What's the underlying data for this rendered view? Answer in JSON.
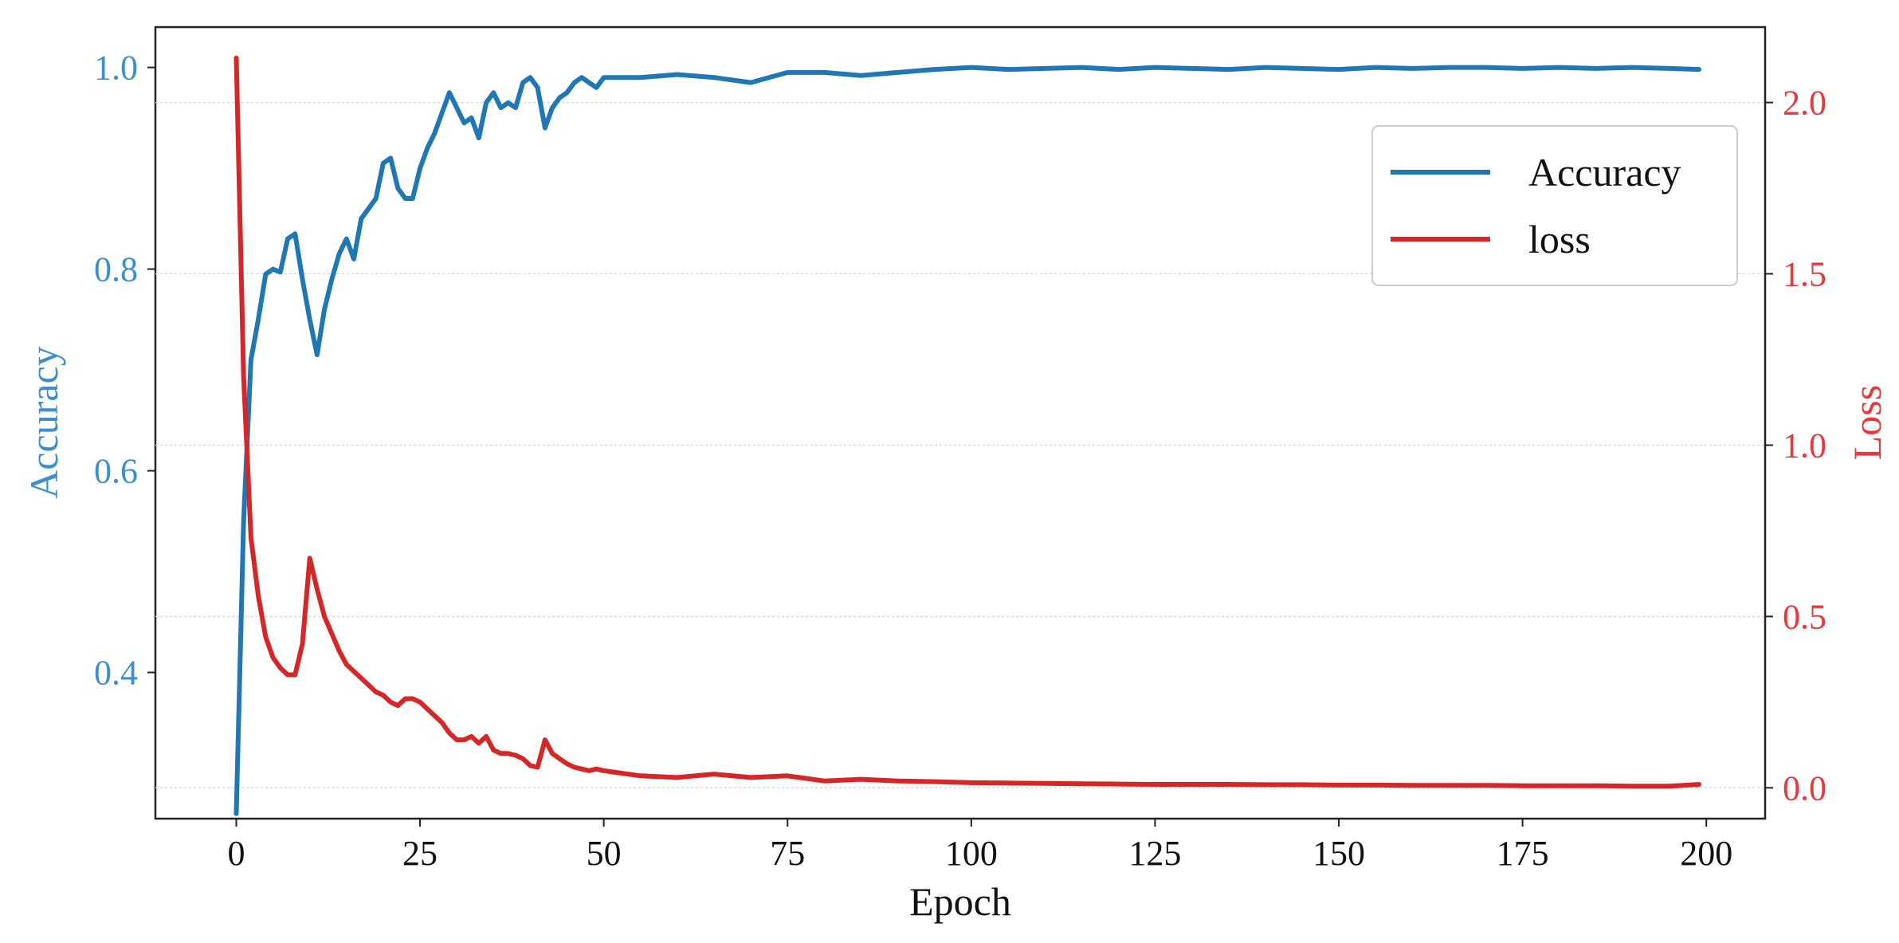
{
  "chart_data": {
    "type": "line",
    "title": "",
    "xlabel": "Epoch",
    "ylabel_left": "Accuracy",
    "ylabel_right": "Loss",
    "xlim": [
      -11,
      208
    ],
    "ylim_left": [
      0.255,
      1.04
    ],
    "ylim_right": [
      -0.09,
      2.22
    ],
    "x_ticks": [
      0,
      25,
      50,
      75,
      100,
      125,
      150,
      175,
      200
    ],
    "y_left_ticks": [
      0.4,
      0.6,
      0.8,
      1.0
    ],
    "y_right_ticks": [
      0.0,
      0.5,
      1.0,
      1.5,
      2.0
    ],
    "y_left_tick_labels": [
      "0.4",
      "0.6",
      "0.8",
      "1.0"
    ],
    "y_right_tick_labels": [
      "0.0",
      "0.5",
      "1.0",
      "1.5",
      "2.0"
    ],
    "grid": true,
    "legend_position": "upper-right",
    "colors": {
      "accuracy": "#1f77b4",
      "loss": "#d62728",
      "left_axis_text": "#3b8fd0",
      "right_axis_text": "#e8383d"
    },
    "series": [
      {
        "name": "Accuracy",
        "axis": "left",
        "x": [
          0,
          1,
          2,
          3,
          4,
          5,
          6,
          7,
          8,
          9,
          10,
          11,
          12,
          13,
          14,
          15,
          16,
          17,
          18,
          19,
          20,
          21,
          22,
          23,
          24,
          25,
          26,
          27,
          28,
          29,
          30,
          31,
          32,
          33,
          34,
          35,
          36,
          37,
          38,
          39,
          40,
          41,
          42,
          43,
          44,
          45,
          46,
          47,
          48,
          49,
          50,
          55,
          60,
          65,
          70,
          75,
          80,
          85,
          90,
          95,
          100,
          105,
          110,
          115,
          120,
          125,
          130,
          135,
          140,
          145,
          150,
          155,
          160,
          165,
          170,
          175,
          180,
          185,
          190,
          195,
          199
        ],
        "values": [
          0.26,
          0.55,
          0.71,
          0.75,
          0.795,
          0.8,
          0.797,
          0.83,
          0.835,
          0.79,
          0.75,
          0.715,
          0.76,
          0.79,
          0.815,
          0.83,
          0.81,
          0.85,
          0.86,
          0.87,
          0.905,
          0.91,
          0.88,
          0.87,
          0.87,
          0.9,
          0.92,
          0.935,
          0.955,
          0.975,
          0.96,
          0.945,
          0.95,
          0.93,
          0.965,
          0.975,
          0.96,
          0.965,
          0.96,
          0.985,
          0.99,
          0.98,
          0.94,
          0.96,
          0.97,
          0.975,
          0.985,
          0.99,
          0.985,
          0.98,
          0.99,
          0.99,
          0.993,
          0.99,
          0.985,
          0.995,
          0.995,
          0.992,
          0.995,
          0.998,
          1.0,
          0.998,
          0.999,
          1.0,
          0.998,
          1.0,
          0.999,
          0.998,
          1.0,
          0.999,
          0.998,
          1.0,
          0.999,
          1.0,
          1.0,
          0.999,
          1.0,
          0.999,
          1.0,
          0.999,
          0.998
        ]
      },
      {
        "name": "loss",
        "axis": "right",
        "x": [
          0,
          1,
          2,
          3,
          4,
          5,
          6,
          7,
          8,
          9,
          10,
          11,
          12,
          13,
          14,
          15,
          16,
          17,
          18,
          19,
          20,
          21,
          22,
          23,
          24,
          25,
          26,
          27,
          28,
          29,
          30,
          31,
          32,
          33,
          34,
          35,
          36,
          37,
          38,
          39,
          40,
          41,
          42,
          43,
          44,
          45,
          46,
          47,
          48,
          49,
          50,
          55,
          60,
          65,
          70,
          75,
          80,
          85,
          90,
          95,
          100,
          105,
          110,
          115,
          120,
          125,
          130,
          135,
          140,
          145,
          150,
          155,
          160,
          165,
          170,
          175,
          180,
          185,
          190,
          195,
          199
        ],
        "values": [
          2.13,
          1.2,
          0.73,
          0.56,
          0.44,
          0.38,
          0.35,
          0.33,
          0.33,
          0.42,
          0.67,
          0.58,
          0.5,
          0.45,
          0.4,
          0.36,
          0.34,
          0.32,
          0.3,
          0.28,
          0.27,
          0.25,
          0.24,
          0.26,
          0.26,
          0.25,
          0.23,
          0.21,
          0.19,
          0.16,
          0.14,
          0.14,
          0.15,
          0.13,
          0.15,
          0.11,
          0.1,
          0.1,
          0.095,
          0.085,
          0.065,
          0.06,
          0.14,
          0.1,
          0.085,
          0.07,
          0.06,
          0.055,
          0.05,
          0.055,
          0.05,
          0.035,
          0.03,
          0.04,
          0.03,
          0.035,
          0.02,
          0.025,
          0.02,
          0.018,
          0.015,
          0.014,
          0.013,
          0.012,
          0.011,
          0.01,
          0.01,
          0.01,
          0.009,
          0.009,
          0.008,
          0.008,
          0.007,
          0.007,
          0.007,
          0.006,
          0.006,
          0.006,
          0.005,
          0.005,
          0.01
        ]
      }
    ]
  }
}
